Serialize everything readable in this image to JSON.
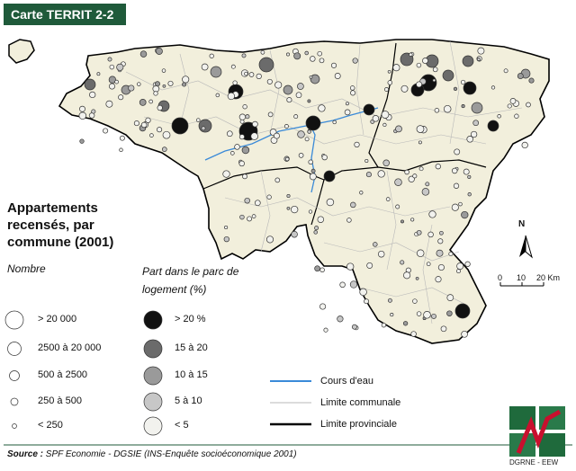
{
  "header": {
    "title": "Carte TERRIT 2-2"
  },
  "title": "Appartements recensés, par commune (2001)",
  "legend": {
    "size_title": "Nombre",
    "sizes": [
      "> 20 000",
      "2500 à 20 000",
      "500 à 2500",
      "250 à 500",
      "< 250"
    ],
    "shade_title": "Part dans le parc de logement (%)",
    "shades": [
      "> 20 %",
      "15 à 20",
      "10 à 15",
      "5 à 10",
      "< 5"
    ],
    "shade_colors": [
      "#111111",
      "#6b6b6b",
      "#9a9a9a",
      "#c7c7c7",
      "#f2f2ee"
    ],
    "lines": [
      "Cours d'eau",
      "Limite communale",
      "Limite provinciale"
    ],
    "line_colors": [
      "#3a8ad8",
      "#b8b8b8",
      "#000000"
    ]
  },
  "scale": {
    "labels": [
      "0",
      "10",
      "20 Km"
    ]
  },
  "north": "N",
  "source": {
    "label": "Source :",
    "text": "SPF Economie - DGSIE (INS-Enquête socioéconomique 2001)"
  },
  "logo": {
    "caption": "DGRNE - EEW",
    "icon": "w-logo-icon"
  },
  "colors": {
    "map_fill": "#f2efdc",
    "header_bg": "#1f5a3a",
    "water": "#3a8ad8"
  }
}
